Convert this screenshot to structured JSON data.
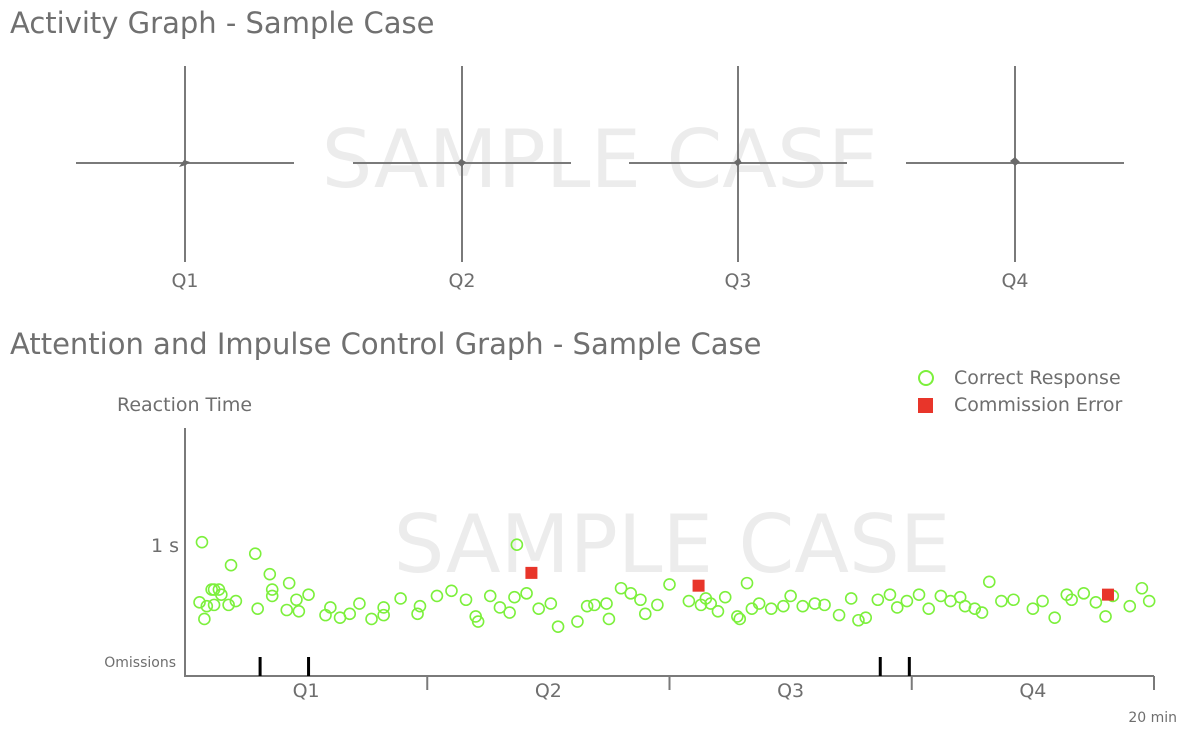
{
  "activity": {
    "title": "Activity Graph - Sample Case",
    "watermark": "SAMPLE CASE",
    "quadrants": [
      "Q1",
      "Q2",
      "Q3",
      "Q4"
    ]
  },
  "attention": {
    "title": "Attention and Impulse Control Graph - Sample Case",
    "watermark": "SAMPLE CASE",
    "legend": {
      "correct": "Correct Response",
      "commission": "Commission Error"
    },
    "y_axis_label": "Reaction Time",
    "y_tick": "1 s",
    "omissions_label": "Omissions",
    "end_label": "20 min",
    "colors": {
      "correct": "#7cf03c",
      "commission": "#e8352a",
      "axis": "#7a7a7a"
    }
  },
  "chart_data": [
    {
      "type": "scatter",
      "title": "Activity Graph - Sample Case",
      "categories": [
        "Q1",
        "Q2",
        "Q3",
        "Q4"
      ],
      "note_points": "movement traces near origin of each quadrant plot"
    },
    {
      "type": "scatter",
      "title": "Attention and Impulse Control Graph - Sample Case",
      "ylabel": "Reaction Time",
      "xlim": [
        0,
        20
      ],
      "ylim": [
        0,
        1.5
      ],
      "x_categories": [
        "Q1",
        "Q2",
        "Q3",
        "Q4"
      ],
      "series": [
        {
          "name": "Correct Response",
          "points": [
            [
              0.35,
              1.03
            ],
            [
              0.3,
              0.56
            ],
            [
              0.45,
              0.53
            ],
            [
              0.55,
              0.66
            ],
            [
              0.6,
              0.66
            ],
            [
              0.7,
              0.66
            ],
            [
              0.4,
              0.43
            ],
            [
              0.6,
              0.54
            ],
            [
              0.75,
              0.62
            ],
            [
              0.9,
              0.54
            ],
            [
              0.95,
              0.85
            ],
            [
              1.05,
              0.57
            ],
            [
              1.45,
              0.94
            ],
            [
              1.5,
              0.51
            ],
            [
              1.75,
              0.78
            ],
            [
              1.8,
              0.66
            ],
            [
              1.8,
              0.61
            ],
            [
              2.1,
              0.5
            ],
            [
              2.15,
              0.71
            ],
            [
              2.3,
              0.58
            ],
            [
              2.35,
              0.49
            ],
            [
              2.55,
              0.62
            ],
            [
              2.9,
              0.46
            ],
            [
              3.0,
              0.52
            ],
            [
              3.2,
              0.44
            ],
            [
              3.4,
              0.47
            ],
            [
              3.6,
              0.55
            ],
            [
              3.85,
              0.43
            ],
            [
              4.1,
              0.52
            ],
            [
              4.1,
              0.46
            ],
            [
              4.45,
              0.59
            ],
            [
              4.8,
              0.47
            ],
            [
              4.85,
              0.53
            ],
            [
              5.2,
              0.61
            ],
            [
              5.5,
              0.65
            ],
            [
              5.8,
              0.58
            ],
            [
              6.0,
              0.45
            ],
            [
              6.05,
              0.41
            ],
            [
              6.3,
              0.61
            ],
            [
              6.5,
              0.52
            ],
            [
              6.7,
              0.48
            ],
            [
              6.8,
              0.6
            ],
            [
              6.85,
              1.01
            ],
            [
              7.05,
              0.63
            ],
            [
              7.3,
              0.51
            ],
            [
              7.55,
              0.55
            ],
            [
              7.7,
              0.37
            ],
            [
              8.1,
              0.41
            ],
            [
              8.3,
              0.53
            ],
            [
              8.45,
              0.54
            ],
            [
              8.7,
              0.55
            ],
            [
              8.75,
              0.43
            ],
            [
              9.0,
              0.67
            ],
            [
              9.2,
              0.63
            ],
            [
              9.4,
              0.58
            ],
            [
              9.5,
              0.47
            ],
            [
              9.75,
              0.54
            ],
            [
              10.0,
              0.7
            ],
            [
              10.4,
              0.57
            ],
            [
              10.65,
              0.54
            ],
            [
              10.75,
              0.59
            ],
            [
              10.85,
              0.55
            ],
            [
              11.0,
              0.49
            ],
            [
              11.15,
              0.6
            ],
            [
              11.4,
              0.45
            ],
            [
              11.45,
              0.43
            ],
            [
              11.6,
              0.71
            ],
            [
              11.7,
              0.51
            ],
            [
              11.85,
              0.55
            ],
            [
              12.1,
              0.51
            ],
            [
              12.35,
              0.53
            ],
            [
              12.5,
              0.61
            ],
            [
              12.75,
              0.53
            ],
            [
              13.0,
              0.55
            ],
            [
              13.2,
              0.54
            ],
            [
              13.5,
              0.46
            ],
            [
              13.75,
              0.59
            ],
            [
              13.9,
              0.42
            ],
            [
              14.05,
              0.44
            ],
            [
              14.3,
              0.58
            ],
            [
              14.55,
              0.62
            ],
            [
              14.7,
              0.52
            ],
            [
              14.9,
              0.57
            ],
            [
              15.15,
              0.62
            ],
            [
              15.35,
              0.51
            ],
            [
              15.6,
              0.61
            ],
            [
              15.8,
              0.57
            ],
            [
              16.0,
              0.6
            ],
            [
              16.1,
              0.53
            ],
            [
              16.3,
              0.51
            ],
            [
              16.45,
              0.48
            ],
            [
              16.6,
              0.72
            ],
            [
              16.85,
              0.57
            ],
            [
              17.1,
              0.58
            ],
            [
              17.5,
              0.51
            ],
            [
              17.7,
              0.57
            ],
            [
              17.95,
              0.44
            ],
            [
              18.2,
              0.62
            ],
            [
              18.3,
              0.58
            ],
            [
              18.55,
              0.63
            ],
            [
              18.8,
              0.56
            ],
            [
              19.0,
              0.45
            ],
            [
              19.15,
              0.61
            ],
            [
              19.5,
              0.53
            ],
            [
              19.75,
              0.67
            ],
            [
              19.9,
              0.57
            ]
          ]
        },
        {
          "name": "Commission Error",
          "points": [
            [
              7.15,
              0.79
            ],
            [
              10.6,
              0.69
            ],
            [
              19.05,
              0.62
            ]
          ]
        }
      ],
      "omissions": [
        1.55,
        2.55,
        14.35,
        14.95
      ]
    }
  ]
}
